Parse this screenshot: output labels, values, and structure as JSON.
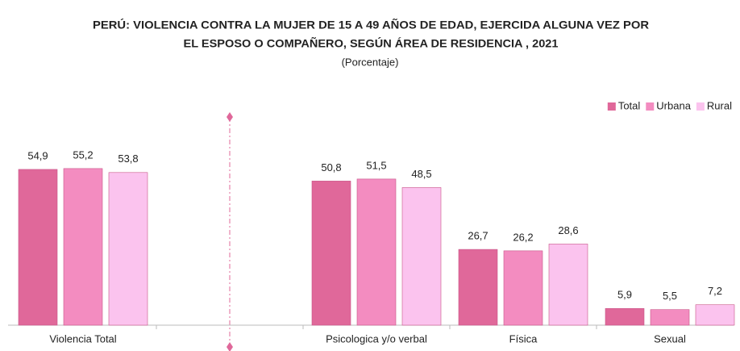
{
  "chart_data": {
    "type": "bar",
    "title": [
      "PERÚ:  VIOLENCIA CONTRA LA MUJER DE 15 A 49 AÑOS DE EDAD, EJERCIDA ALGUNA VEZ POR",
      "EL ESPOSO O COMPAÑERO, SEGÚN ÁREA DE RESIDENCIA , 2021"
    ],
    "subtitle": "(Porcentaje)",
    "categories": [
      "Violencia Total",
      null,
      "Psicologica y/o verbal",
      "Física",
      "Sexual"
    ],
    "series": [
      {
        "name": "Total",
        "color": "#e0689a",
        "values": [
          54.9,
          null,
          50.8,
          26.7,
          5.9
        ],
        "value_labels": [
          "54,9",
          null,
          "50,8",
          "26,7",
          "5,9"
        ]
      },
      {
        "name": "Urbana",
        "color": "#f38cc0",
        "values": [
          55.2,
          null,
          51.5,
          26.2,
          5.5
        ],
        "value_labels": [
          "55,2",
          null,
          "51,5",
          "26,2",
          "5,5"
        ]
      },
      {
        "name": "Rural",
        "color": "#fbc3ee",
        "values": [
          53.8,
          null,
          48.5,
          28.6,
          7.2
        ],
        "value_labels": [
          "53,8",
          null,
          "48,5",
          "28,6",
          "7,2"
        ]
      }
    ],
    "ylim": [
      0,
      60
    ],
    "legend": "top-right"
  }
}
